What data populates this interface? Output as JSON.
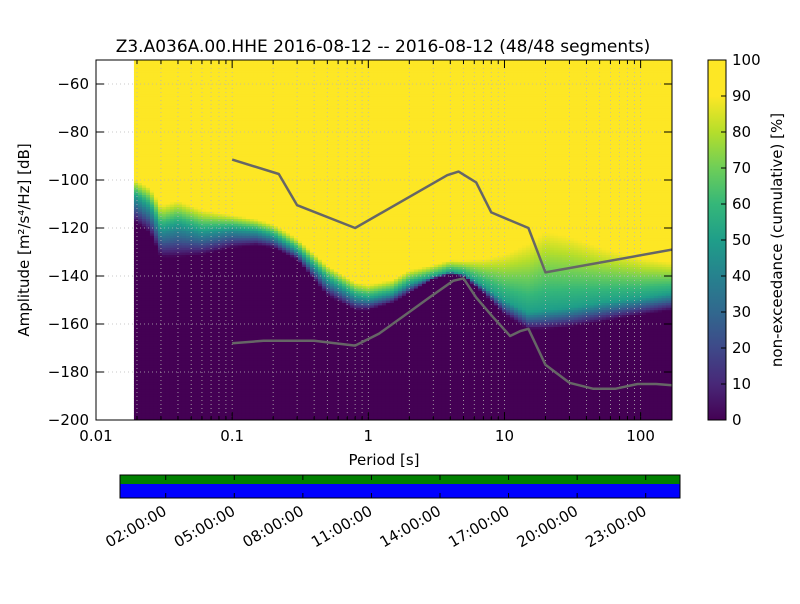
{
  "chart_data": [
    {
      "type": "heatmap",
      "title": "Z3.A036A.00.HHE   2016-08-12 -- 2016-08-12  (48/48 segments)",
      "xlabel": "Period [s]",
      "ylabel": "Amplitude [m²/s⁴/Hz] [dB]",
      "x_scale": "log",
      "xlim": [
        0.01,
        170
      ],
      "ylim": [
        -200,
        -50
      ],
      "grid": true,
      "x_tick_labels": [
        "0.01",
        "0.1",
        "1",
        "10",
        "100"
      ],
      "x_tick_values": [
        0.01,
        0.1,
        1,
        10,
        100
      ],
      "y_tick_labels": [
        "−60",
        "−80",
        "−100",
        "−120",
        "−140",
        "−160",
        "−180",
        "−200"
      ],
      "y_tick_values": [
        -60,
        -80,
        -100,
        -120,
        -140,
        -160,
        -180,
        -200
      ],
      "data_start_period": 0.019,
      "colorbar": {
        "label": "non-exceedance (cumulative) [%]",
        "min": 0,
        "max": 100,
        "tick_labels": [
          "0",
          "10",
          "20",
          "30",
          "40",
          "50",
          "60",
          "70",
          "80",
          "90",
          "100"
        ],
        "tick_values": [
          0,
          10,
          20,
          30,
          40,
          50,
          60,
          70,
          80,
          90,
          100
        ]
      },
      "psd_distribution": {
        "periods": [
          0.019,
          0.025,
          0.03,
          0.04,
          0.06,
          0.1,
          0.15,
          0.2,
          0.3,
          0.5,
          0.8,
          1.0,
          1.5,
          2.0,
          3.0,
          4.0,
          5.0,
          7.0,
          10.0,
          15.0,
          20.0,
          30.0,
          50.0,
          100.0,
          170.0
        ],
        "p0": [
          -117,
          -122,
          -132,
          -132,
          -131,
          -128,
          -127,
          -128,
          -133,
          -148,
          -154,
          -154,
          -151,
          -147,
          -141,
          -139,
          -140,
          -147,
          -156,
          -162,
          -162,
          -161,
          -159,
          -156,
          -154
        ],
        "p50": [
          -106,
          -111,
          -120,
          -118,
          -121,
          -120,
          -121,
          -123,
          -129,
          -141,
          -148,
          -149,
          -147,
          -143,
          -140,
          -138,
          -139,
          -144,
          -150,
          -155,
          -154,
          -153,
          -151,
          -149,
          -147
        ],
        "p100": [
          -98,
          -101,
          -108,
          -106,
          -110,
          -113,
          -115,
          -117,
          -123,
          -134,
          -141,
          -142,
          -140,
          -136,
          -134,
          -132,
          -132,
          -130,
          -126,
          -119,
          -113,
          -116,
          -122,
          -128,
          -131
        ]
      },
      "series": [
        {
          "x": [
            0.1,
            0.22,
            0.3,
            0.8,
            3.8,
            4.6,
            6.2,
            8.0,
            15.0,
            20.0,
            170.0
          ],
          "y": [
            -91.5,
            -97.5,
            -110.5,
            -120,
            -98,
            -96.5,
            -101,
            -113.5,
            -120,
            -138.5,
            -129
          ]
        },
        {
          "x": [
            0.1,
            0.17,
            0.4,
            0.8,
            1.2,
            2.0,
            2.8,
            4.2,
            5.0,
            6.2,
            8.2,
            11.0,
            13.0,
            15.0,
            20.0,
            30.0,
            45.0,
            65.0,
            95.0,
            130.0,
            170.0
          ],
          "y": [
            -168,
            -167,
            -167,
            -169,
            -164,
            -155,
            -149,
            -142,
            -141,
            -149,
            -157,
            -165,
            -163,
            -162,
            -177,
            -184.5,
            -187,
            -187,
            -185,
            -185,
            -185.5
          ]
        }
      ]
    },
    {
      "type": "timeline",
      "tick_labels": [
        "02:00:00",
        "05:00:00",
        "08:00:00",
        "11:00:00",
        "14:00:00",
        "17:00:00",
        "20:00:00",
        "23:00:00"
      ],
      "tick_values_hours": [
        2,
        5,
        8,
        11,
        14,
        17,
        20,
        23
      ],
      "range_hours": [
        0,
        24.5
      ],
      "top_strip_color": "#008000",
      "bottom_strip_color": "#0000ff"
    }
  ]
}
